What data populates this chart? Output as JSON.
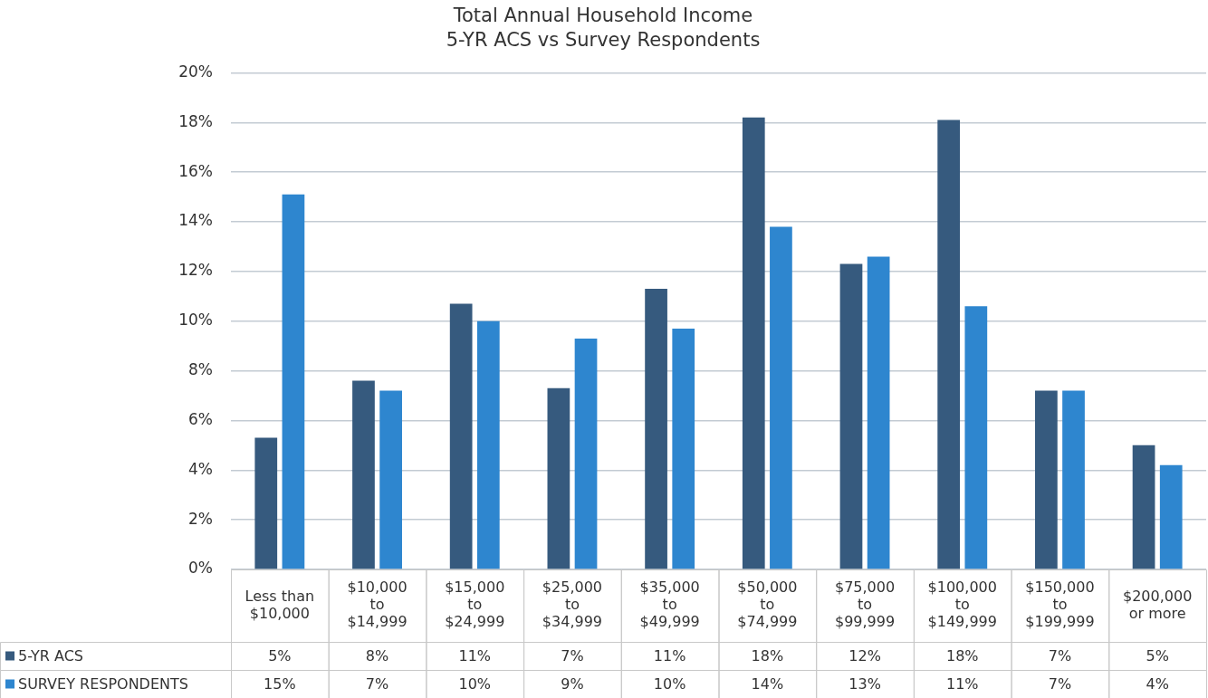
{
  "chart_data": {
    "type": "bar",
    "title": "Total Annual Household Income",
    "subtitle": "5-YR ACS vs Survey Respondents",
    "categories": [
      "Less than\n$10,000",
      "$10,000\nto\n$14,999",
      "$15,000\nto\n$24,999",
      "$25,000\nto\n$34,999",
      "$35,000\nto\n$49,999",
      "$50,000\nto\n$74,999",
      "$75,000\nto\n$99,999",
      "$100,000\nto\n$149,999",
      "$150,000\nto\n$199,999",
      "$200,000\nor more"
    ],
    "series": [
      {
        "name": "5-YR ACS",
        "color": "#365a7e",
        "values": [
          5.3,
          7.6,
          10.7,
          7.3,
          11.3,
          18.2,
          12.3,
          18.1,
          7.2,
          5.0
        ],
        "value_labels": [
          "5%",
          "8%",
          "11%",
          "7%",
          "11%",
          "18%",
          "12%",
          "18%",
          "7%",
          "5%"
        ]
      },
      {
        "name": "SURVEY RESPONDENTS",
        "color": "#2e86cf",
        "values": [
          15.1,
          7.2,
          10.0,
          9.3,
          9.7,
          13.8,
          12.6,
          10.6,
          7.2,
          4.2
        ],
        "value_labels": [
          "15%",
          "7%",
          "10%",
          "9%",
          "10%",
          "14%",
          "13%",
          "11%",
          "7%",
          "4%"
        ]
      }
    ],
    "ylim": [
      0,
      20
    ],
    "yticks": [
      {
        "value": 0,
        "label": "0%"
      },
      {
        "value": 2,
        "label": "2%"
      },
      {
        "value": 4,
        "label": "4%"
      },
      {
        "value": 6,
        "label": "6%"
      },
      {
        "value": 8,
        "label": "8%"
      },
      {
        "value": 10,
        "label": "10%"
      },
      {
        "value": 12,
        "label": "12%"
      },
      {
        "value": 14,
        "label": "14%"
      },
      {
        "value": 16,
        "label": "16%"
      },
      {
        "value": 18,
        "label": "18%"
      },
      {
        "value": 20,
        "label": "20%"
      }
    ],
    "grid": "y",
    "legend": "bottom"
  }
}
